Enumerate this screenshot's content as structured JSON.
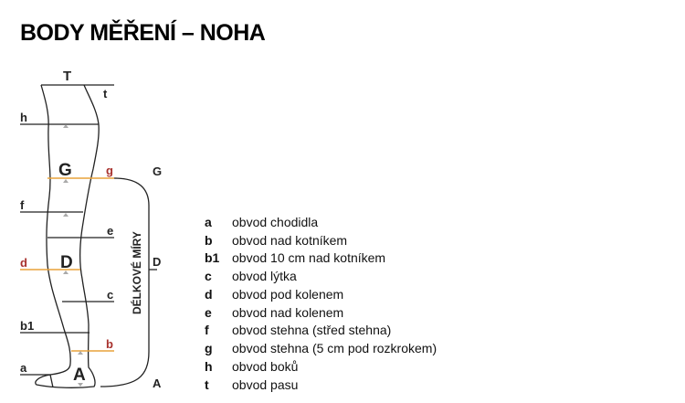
{
  "title": "BODY MĚŘENÍ – NOHA",
  "diagram": {
    "top_label": "T",
    "lines": {
      "t": "t",
      "h": "h",
      "g": "g",
      "f": "f",
      "e": "e",
      "d": "d",
      "c": "c",
      "b1": "b1",
      "b": "b",
      "a": "a"
    },
    "points": {
      "G": "G",
      "D": "D",
      "A": "A"
    },
    "length_label": "DÉLKOVÉ MÍRY",
    "colors": {
      "highlight_line": "#e8a23a",
      "highlight_text": "#a8322e",
      "outline": "#222222",
      "marker": "#aaaaaa"
    }
  },
  "legend": [
    {
      "key": "a",
      "text": "obvod chodidla"
    },
    {
      "key": "b",
      "text": "obvod nad kotníkem"
    },
    {
      "key": "b1",
      "text": "obvod 10 cm nad kotníkem"
    },
    {
      "key": "c",
      "text": "obvod lýtka"
    },
    {
      "key": "d",
      "text": "obvod pod kolenem"
    },
    {
      "key": "e",
      "text": "obvod nad kolenem"
    },
    {
      "key": "f",
      "text": "obvod stehna (střed stehna)"
    },
    {
      "key": "g",
      "text": "obvod stehna (5 cm pod rozkrokem)"
    },
    {
      "key": "h",
      "text": "obvod boků"
    },
    {
      "key": "t",
      "text": "obvod pasu"
    }
  ]
}
